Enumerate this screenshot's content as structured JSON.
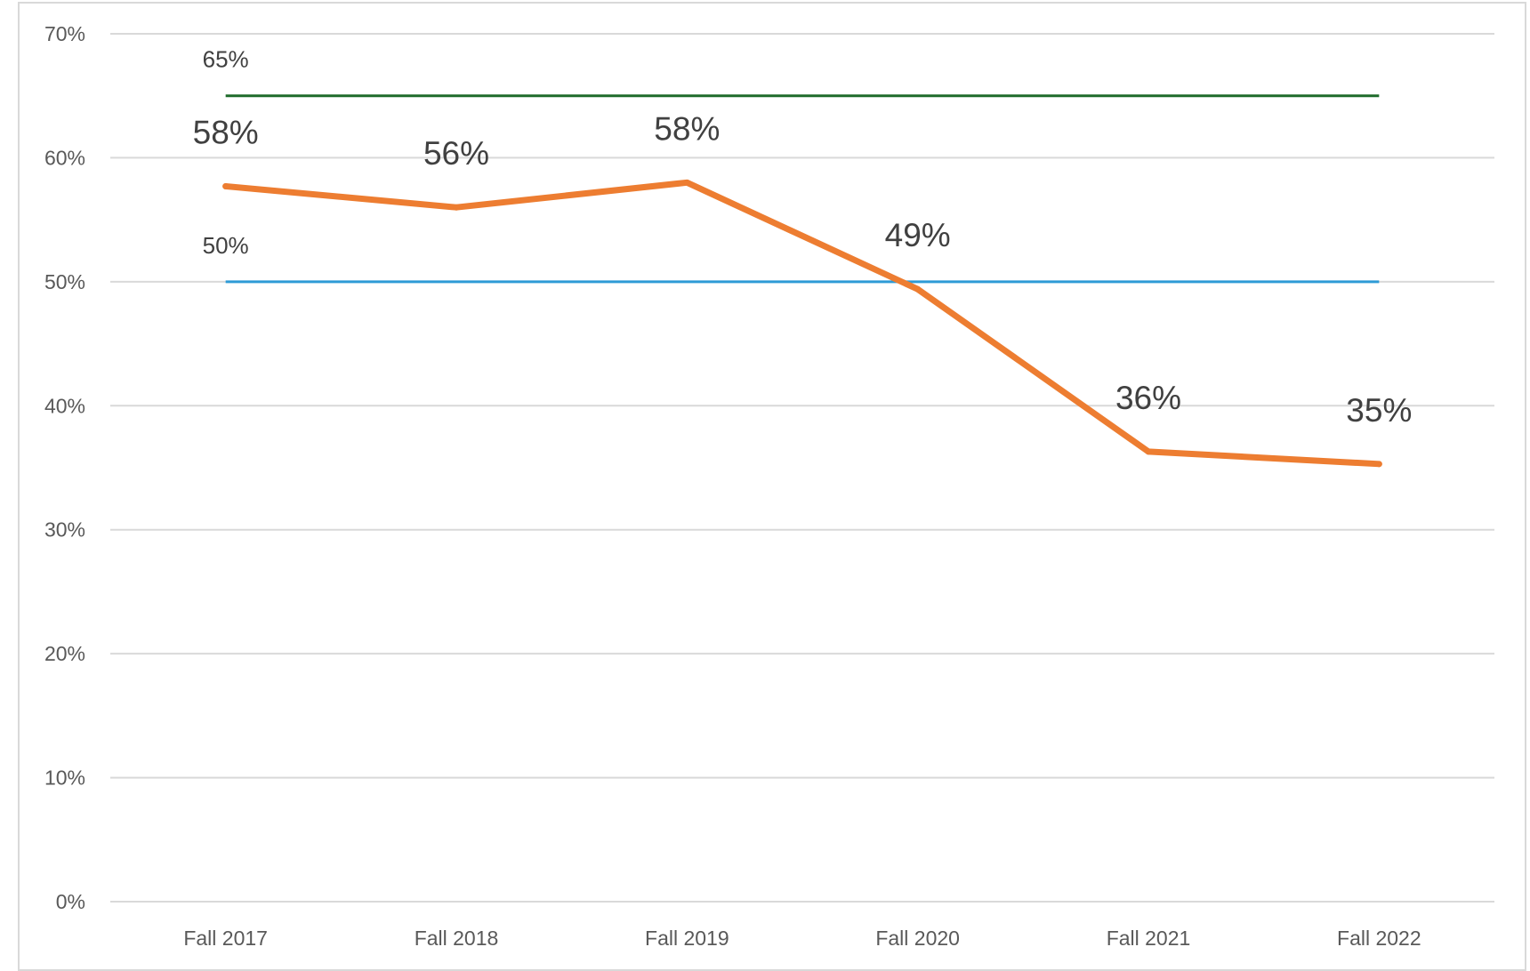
{
  "chart_data": {
    "type": "line",
    "categories": [
      "Fall 2017",
      "Fall 2018",
      "Fall 2019",
      "Fall 2020",
      "Fall 2021",
      "Fall 2022"
    ],
    "series": [
      {
        "values": [
          0.577,
          0.56,
          0.58,
          0.494,
          0.363,
          0.353
        ],
        "data_labels": [
          "58%",
          "56%",
          "58%",
          "49%",
          "36%",
          "35%"
        ],
        "color": "#ED7D31"
      },
      {
        "values": [
          0.65,
          0.65,
          0.65,
          0.65,
          0.65,
          0.65
        ],
        "data_label": "65%",
        "color": "#1E6B2A"
      },
      {
        "values": [
          0.5,
          0.5,
          0.5,
          0.5,
          0.5,
          0.5
        ],
        "data_label": "50%",
        "color": "#2E9BD6"
      }
    ],
    "ylim": [
      0,
      0.7
    ],
    "yticks": [
      0,
      0.1,
      0.2,
      0.3,
      0.4,
      0.5,
      0.6,
      0.7
    ],
    "ytick_labels": [
      "0%",
      "10%",
      "20%",
      "30%",
      "40%",
      "50%",
      "60%",
      "70%"
    ],
    "grid": true,
    "gridline_color": "#d9d9d9",
    "title": "",
    "xlabel": "",
    "ylabel": ""
  }
}
